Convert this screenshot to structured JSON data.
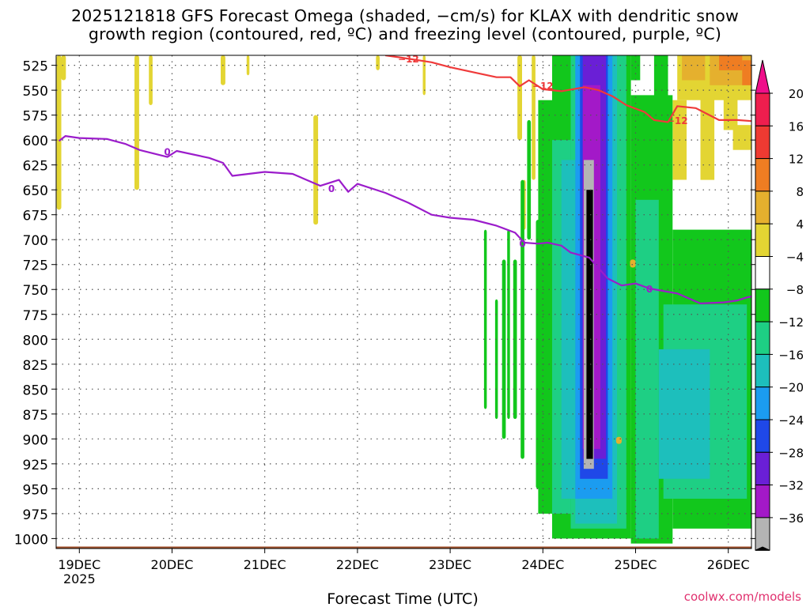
{
  "chart_data": {
    "type": "heatmap",
    "title_line1": "2025121818 GFS Forecast Omega (shaded, −cm/s) for KLAX with dendritic snow",
    "title_line2": "growth region (contoured, red, ºC) and freezing level (contoured, purple, ºC)",
    "xlabel": "Forecast Time (UTC)",
    "ylabel": "Pressure (hPa)",
    "credit": "coolwx.com/models",
    "x_ticks": [
      {
        "label": "19DEC",
        "day": 19
      },
      {
        "label": "20DEC",
        "day": 20
      },
      {
        "label": "21DEC",
        "day": 21
      },
      {
        "label": "22DEC",
        "day": 22
      },
      {
        "label": "23DEC",
        "day": 23
      },
      {
        "label": "24DEC",
        "day": 24
      },
      {
        "label": "25DEC",
        "day": 25
      },
      {
        "label": "26DEC",
        "day": 26
      }
    ],
    "year_label": "2025",
    "x_range_day": [
      18.75,
      26.25
    ],
    "y_range_hpa": [
      515,
      1010
    ],
    "y_ticks": [
      525,
      550,
      575,
      600,
      625,
      650,
      675,
      700,
      725,
      750,
      775,
      800,
      825,
      850,
      875,
      900,
      925,
      950,
      975,
      1000
    ],
    "colorbar": {
      "levels": [
        "20",
        "16",
        "12",
        "8",
        "4",
        "−4",
        "−8",
        "−12",
        "−16",
        "−20",
        "−24",
        "−28",
        "−32",
        "−36"
      ],
      "colors": [
        "#ee1e4e",
        "#ee3a32",
        "#ef7d22",
        "#e5b02e",
        "#e3d533",
        "#ffffff",
        "#12c71c",
        "#1ecf84",
        "#1dbfbc",
        "#1b9cf0",
        "#1f48e8",
        "#6a1fd6",
        "#a319c8",
        "#b4b4b4",
        "#000000"
      ],
      "top_color": "#ef0f8a"
    },
    "freezing_level_label": "0",
    "freezing_level_hpa": [
      {
        "day": 18.78,
        "p": 601
      },
      {
        "day": 18.85,
        "p": 596
      },
      {
        "day": 19.0,
        "p": 598
      },
      {
        "day": 19.3,
        "p": 599
      },
      {
        "day": 19.5,
        "p": 604
      },
      {
        "day": 19.65,
        "p": 610
      },
      {
        "day": 19.95,
        "p": 617
      },
      {
        "day": 20.05,
        "p": 611
      },
      {
        "day": 20.4,
        "p": 618
      },
      {
        "day": 20.55,
        "p": 623
      },
      {
        "day": 20.65,
        "p": 636
      },
      {
        "day": 21.0,
        "p": 632
      },
      {
        "day": 21.3,
        "p": 634
      },
      {
        "day": 21.6,
        "p": 646
      },
      {
        "day": 21.8,
        "p": 640
      },
      {
        "day": 21.9,
        "p": 652
      },
      {
        "day": 22.0,
        "p": 644
      },
      {
        "day": 22.3,
        "p": 653
      },
      {
        "day": 22.55,
        "p": 663
      },
      {
        "day": 22.8,
        "p": 675
      },
      {
        "day": 23.0,
        "p": 678
      },
      {
        "day": 23.25,
        "p": 680
      },
      {
        "day": 23.5,
        "p": 686
      },
      {
        "day": 23.7,
        "p": 693
      },
      {
        "day": 23.8,
        "p": 703
      },
      {
        "day": 23.95,
        "p": 704
      },
      {
        "day": 24.05,
        "p": 703
      },
      {
        "day": 24.2,
        "p": 706
      },
      {
        "day": 24.3,
        "p": 713
      },
      {
        "day": 24.5,
        "p": 718
      },
      {
        "day": 24.7,
        "p": 739
      },
      {
        "day": 24.85,
        "p": 746
      },
      {
        "day": 25.0,
        "p": 744
      },
      {
        "day": 25.15,
        "p": 749
      },
      {
        "day": 25.45,
        "p": 754
      },
      {
        "day": 25.7,
        "p": 764
      },
      {
        "day": 25.95,
        "p": 763
      },
      {
        "day": 26.1,
        "p": 761
      },
      {
        "day": 26.2,
        "p": 758
      },
      {
        "day": 26.25,
        "p": 757
      }
    ],
    "dgz_label": "−12",
    "dgz_minus12_hpa": [
      {
        "day": 22.3,
        "p": 515
      },
      {
        "day": 22.45,
        "p": 517
      },
      {
        "day": 22.8,
        "p": 522
      },
      {
        "day": 23.0,
        "p": 527
      },
      {
        "day": 23.3,
        "p": 533
      },
      {
        "day": 23.5,
        "p": 537
      },
      {
        "day": 23.65,
        "p": 537
      },
      {
        "day": 23.75,
        "p": 546
      },
      {
        "day": 23.85,
        "p": 540
      },
      {
        "day": 24.0,
        "p": 549
      },
      {
        "day": 24.2,
        "p": 551
      },
      {
        "day": 24.45,
        "p": 547
      },
      {
        "day": 24.6,
        "p": 550
      },
      {
        "day": 24.75,
        "p": 556
      },
      {
        "day": 24.9,
        "p": 565
      },
      {
        "day": 25.1,
        "p": 572
      },
      {
        "day": 25.2,
        "p": 580
      },
      {
        "day": 25.35,
        "p": 582
      },
      {
        "day": 25.45,
        "p": 566
      },
      {
        "day": 25.65,
        "p": 568
      },
      {
        "day": 25.9,
        "p": 580
      },
      {
        "day": 26.1,
        "p": 580
      },
      {
        "day": 26.25,
        "p": 581
      }
    ],
    "terrain_surface_hpa": 1008
  }
}
